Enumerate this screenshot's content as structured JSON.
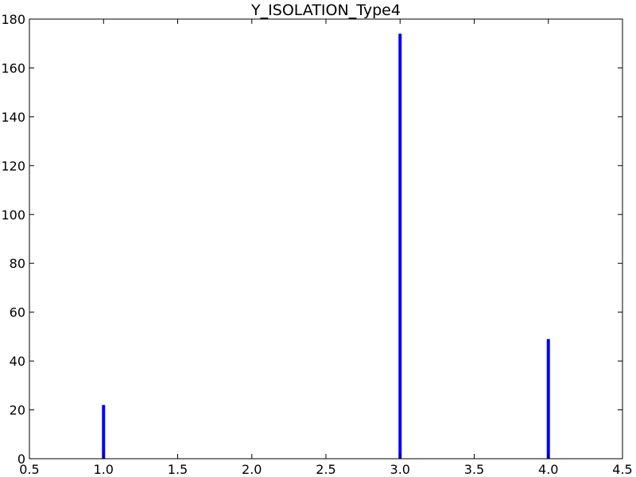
{
  "chart_data": {
    "type": "bar",
    "title": "Y_ISOLATION_Type4",
    "xlabel": "",
    "ylabel": "",
    "x": [
      1,
      3,
      4
    ],
    "values": [
      22,
      174,
      49
    ],
    "xlim": [
      0.5,
      4.5
    ],
    "ylim": [
      0,
      180
    ],
    "xticks": [
      "0.5",
      "1.0",
      "1.5",
      "2.0",
      "2.5",
      "3.0",
      "3.5",
      "4.0",
      "4.5"
    ],
    "yticks": [
      "0",
      "20",
      "40",
      "60",
      "80",
      "100",
      "120",
      "140",
      "160",
      "180"
    ],
    "bar_color": "#0000ff",
    "grid": false,
    "legend": "none"
  }
}
